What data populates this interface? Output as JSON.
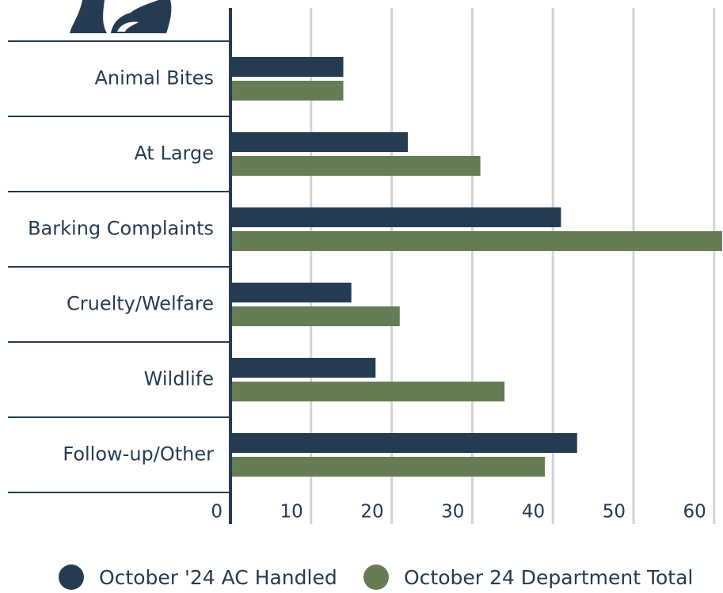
{
  "chart_data": {
    "type": "bar",
    "orientation": "horizontal",
    "categories": [
      "Animal Bites",
      "At Large",
      "Barking Complaints",
      "Cruelty/Welfare",
      "Wildlife",
      "Follow-up/Other"
    ],
    "series": [
      {
        "name": "October '24 AC Handled",
        "color": "#253b52",
        "values": [
          14,
          22,
          41,
          15,
          18,
          43
        ]
      },
      {
        "name": "October 24 Department Total",
        "color": "#667c55",
        "values": [
          14,
          31,
          61,
          21,
          34,
          39
        ]
      }
    ],
    "xlim": [
      0,
      61
    ],
    "xticks": [
      0,
      10,
      20,
      30,
      40,
      50,
      60
    ],
    "grid": true,
    "legend": "bottom"
  }
}
